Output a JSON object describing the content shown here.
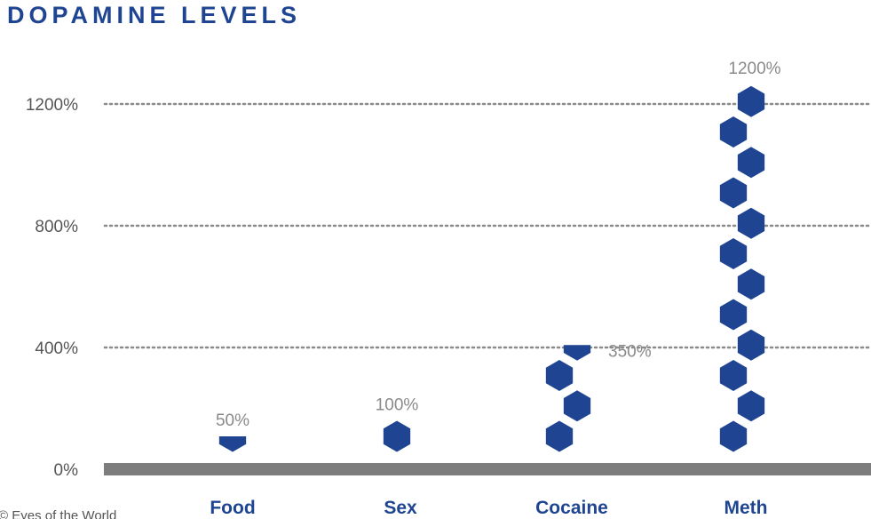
{
  "title": "DOPAMINE LEVELS",
  "credit": "© Eyes of the World",
  "colors": {
    "title": "#1f4592",
    "hexagon": "#1f4592",
    "baseline": "#7d7d7d",
    "gridline": "#8a8a8a",
    "tick_label": "#555555",
    "value_label": "#8a8a8a",
    "category_label": "#1f4592"
  },
  "chart_data": {
    "type": "bar",
    "style": "stacked hexagon icons",
    "title": "DOPAMINE LEVELS",
    "xlabel": "",
    "ylabel": "",
    "categories": [
      "Food",
      "Sex",
      "Cocaine",
      "Meth"
    ],
    "values": [
      50,
      100,
      350,
      1200
    ],
    "data_labels": [
      "50%",
      "100%",
      "350%",
      "1200%"
    ],
    "icon_unit": 100,
    "ylim": [
      0,
      1200
    ],
    "yticks": [
      0,
      400,
      800,
      1200
    ],
    "ytick_labels": [
      "0%",
      "400%",
      "800%",
      "1200%"
    ],
    "grid": "dotted horizontal lines at 400%, 800%, 1200%",
    "legend": "none"
  }
}
